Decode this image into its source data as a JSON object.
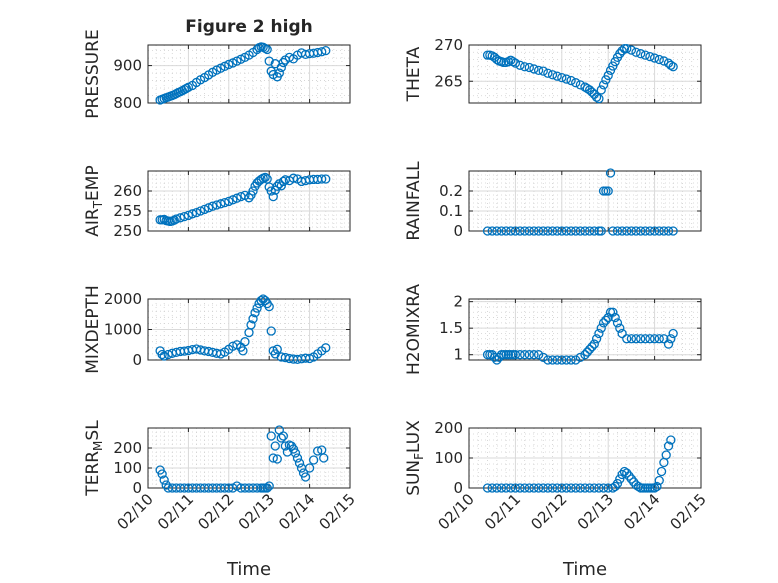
{
  "chart_data": [
    {
      "type": "scatter",
      "title": "Figure 2 high",
      "ylabel": "PRESSURE",
      "xlabel": "",
      "xlim": [
        0,
        5
      ],
      "ylim": [
        800,
        955
      ],
      "yticks": [
        800,
        900
      ],
      "yticklabels": [
        "800",
        "900"
      ],
      "grid": "on, with minor grid",
      "series": [
        {
          "x": [
            0.3,
            0.35,
            0.4,
            0.45,
            0.5,
            0.55,
            0.6,
            0.65,
            0.7,
            0.75,
            0.8,
            0.85,
            0.9,
            0.95,
            1.0,
            1.1,
            1.2,
            1.3,
            1.4,
            1.5,
            1.6,
            1.7,
            1.8,
            1.9,
            2.0,
            2.1,
            2.2,
            2.3,
            2.4,
            2.5,
            2.6,
            2.7,
            2.75,
            2.8,
            2.85,
            2.9,
            2.95,
            3.0,
            3.05,
            3.1,
            3.15,
            3.2,
            3.25,
            3.3,
            3.35,
            3.4,
            3.5,
            3.6,
            3.7,
            3.8,
            3.9,
            4.0,
            4.1,
            4.2,
            4.3,
            4.4
          ],
          "y": [
            808,
            810,
            812,
            814,
            816,
            818,
            820,
            822,
            825,
            828,
            830,
            833,
            836,
            839,
            842,
            847,
            855,
            862,
            868,
            875,
            882,
            888,
            893,
            898,
            903,
            907,
            912,
            917,
            922,
            928,
            935,
            943,
            948,
            950,
            949,
            946,
            943,
            912,
            885,
            876,
            905,
            870,
            880,
            895,
            908,
            915,
            922,
            918,
            928,
            934,
            930,
            932,
            933,
            935,
            937,
            940
          ]
        }
      ]
    },
    {
      "type": "scatter",
      "title": "",
      "ylabel": "THETA",
      "xlabel": "",
      "xlim": [
        0,
        5
      ],
      "ylim": [
        262,
        270
      ],
      "yticks": [
        265,
        270
      ],
      "yticklabels": [
        "265",
        "270"
      ],
      "grid": "on, with minor grid",
      "series": [
        {
          "x": [
            0.4,
            0.45,
            0.5,
            0.55,
            0.6,
            0.65,
            0.7,
            0.75,
            0.8,
            0.85,
            0.9,
            0.95,
            1.0,
            1.1,
            1.2,
            1.3,
            1.4,
            1.5,
            1.6,
            1.7,
            1.8,
            1.9,
            2.0,
            2.1,
            2.2,
            2.3,
            2.4,
            2.5,
            2.55,
            2.6,
            2.65,
            2.7,
            2.75,
            2.8,
            2.85,
            2.9,
            2.95,
            3.0,
            3.05,
            3.1,
            3.15,
            3.2,
            3.25,
            3.3,
            3.35,
            3.4,
            3.5,
            3.6,
            3.7,
            3.8,
            3.9,
            4.0,
            4.1,
            4.2,
            4.3,
            4.35,
            4.4
          ],
          "y": [
            268.6,
            268.6,
            268.5,
            268.3,
            268.0,
            267.8,
            267.7,
            267.6,
            267.6,
            267.7,
            267.9,
            267.7,
            267.5,
            267.2,
            267.0,
            266.9,
            266.7,
            266.5,
            266.4,
            266.1,
            265.9,
            265.7,
            265.5,
            265.3,
            265.1,
            264.8,
            264.5,
            264.2,
            264.0,
            263.8,
            263.5,
            263.2,
            262.8,
            262.6,
            263.8,
            264.5,
            265.2,
            265.8,
            266.5,
            267.1,
            267.7,
            268.3,
            268.8,
            269.2,
            269.5,
            269.5,
            269.3,
            269.0,
            268.8,
            268.6,
            268.4,
            268.2,
            268.0,
            267.8,
            267.5,
            267.2,
            267.0
          ]
        }
      ]
    },
    {
      "type": "scatter",
      "title": "",
      "ylabel": "AIR_TEMP",
      "xlabel": "",
      "xlim": [
        0,
        5
      ],
      "ylim": [
        250,
        265
      ],
      "yticks": [
        250,
        255,
        260
      ],
      "yticklabels": [
        "250",
        "255",
        "260"
      ],
      "grid": "on, with minor grid",
      "series": [
        {
          "x": [
            0.3,
            0.35,
            0.4,
            0.45,
            0.5,
            0.55,
            0.6,
            0.65,
            0.7,
            0.8,
            0.9,
            1.0,
            1.1,
            1.2,
            1.3,
            1.4,
            1.5,
            1.6,
            1.7,
            1.8,
            1.9,
            2.0,
            2.1,
            2.2,
            2.3,
            2.4,
            2.5,
            2.55,
            2.6,
            2.65,
            2.7,
            2.75,
            2.8,
            2.85,
            2.9,
            2.95,
            3.0,
            3.05,
            3.1,
            3.15,
            3.2,
            3.25,
            3.3,
            3.35,
            3.4,
            3.5,
            3.6,
            3.7,
            3.8,
            3.9,
            4.0,
            4.1,
            4.2,
            4.3,
            4.4
          ],
          "y": [
            252.8,
            252.8,
            252.9,
            252.6,
            252.5,
            252.4,
            252.5,
            252.7,
            253.0,
            253.3,
            253.6,
            253.9,
            254.3,
            254.6,
            255.0,
            255.4,
            255.8,
            256.2,
            256.5,
            256.8,
            257.1,
            257.4,
            257.8,
            258.2,
            258.6,
            258.9,
            258.3,
            259.0,
            260.0,
            261.2,
            262.0,
            262.5,
            262.9,
            263.2,
            263.4,
            263.0,
            261.0,
            260.0,
            258.6,
            260.2,
            261.2,
            261.8,
            261.3,
            262.4,
            262.8,
            262.6,
            263.2,
            263.0,
            262.4,
            262.6,
            262.8,
            262.9,
            262.9,
            263.0,
            263.0
          ]
        }
      ]
    },
    {
      "type": "scatter",
      "title": "",
      "ylabel": "RAINFALL",
      "xlabel": "",
      "xlim": [
        0,
        5
      ],
      "ylim": [
        0,
        0.3
      ],
      "yticks": [
        0,
        0.1,
        0.2
      ],
      "yticklabels": [
        "0",
        "0.1",
        "0.2"
      ],
      "grid": "on, with minor grid",
      "series": [
        {
          "x": [
            0.4,
            0.5,
            0.6,
            0.7,
            0.8,
            0.9,
            1.0,
            1.1,
            1.2,
            1.3,
            1.4,
            1.5,
            1.6,
            1.7,
            1.8,
            1.9,
            2.0,
            2.1,
            2.2,
            2.3,
            2.4,
            2.5,
            2.6,
            2.7,
            2.8,
            2.85,
            2.9,
            2.95,
            3.0,
            3.05,
            3.1,
            3.2,
            3.3,
            3.4,
            3.5,
            3.6,
            3.7,
            3.8,
            3.9,
            4.0,
            4.1,
            4.2,
            4.3,
            4.4
          ],
          "y": [
            0,
            0,
            0,
            0,
            0,
            0,
            0,
            0,
            0,
            0,
            0,
            0,
            0,
            0,
            0,
            0,
            0,
            0,
            0,
            0,
            0,
            0,
            0,
            0,
            0,
            0,
            0.2,
            0.2,
            0.2,
            0.29,
            0,
            0,
            0,
            0,
            0,
            0,
            0,
            0,
            0,
            0,
            0,
            0,
            0,
            0
          ]
        }
      ]
    },
    {
      "type": "scatter",
      "title": "",
      "ylabel": "MIXDEPTH",
      "xlabel": "",
      "xlim": [
        0,
        5
      ],
      "ylim": [
        0,
        2000
      ],
      "yticks": [
        0,
        1000,
        2000
      ],
      "yticklabels": [
        "0",
        "1000",
        "2000"
      ],
      "grid": "on, with minor grid",
      "series": [
        {
          "x": [
            0.3,
            0.35,
            0.4,
            0.5,
            0.6,
            0.7,
            0.8,
            0.9,
            1.0,
            1.1,
            1.2,
            1.3,
            1.4,
            1.5,
            1.6,
            1.7,
            1.8,
            1.9,
            2.0,
            2.1,
            2.2,
            2.3,
            2.35,
            2.4,
            2.5,
            2.55,
            2.6,
            2.65,
            2.7,
            2.75,
            2.8,
            2.85,
            2.9,
            2.95,
            3.0,
            3.05,
            3.1,
            3.15,
            3.2,
            3.3,
            3.4,
            3.5,
            3.6,
            3.7,
            3.8,
            3.9,
            4.0,
            4.1,
            4.2,
            4.3,
            4.4
          ],
          "y": [
            300,
            180,
            130,
            180,
            220,
            250,
            280,
            290,
            310,
            340,
            360,
            330,
            300,
            280,
            250,
            220,
            200,
            260,
            350,
            450,
            500,
            420,
            300,
            600,
            900,
            1150,
            1350,
            1550,
            1700,
            1850,
            1950,
            2000,
            1950,
            1850,
            1750,
            950,
            300,
            200,
            350,
            100,
            80,
            50,
            30,
            20,
            40,
            60,
            50,
            100,
            200,
            300,
            400
          ]
        }
      ]
    },
    {
      "type": "scatter",
      "title": "",
      "ylabel": "H2OMIXRA",
      "xlabel": "",
      "xlim": [
        0,
        5
      ],
      "ylim": [
        0.9,
        2.05
      ],
      "yticks": [
        1,
        1.5,
        2
      ],
      "yticklabels": [
        "1",
        "1.5",
        "2"
      ],
      "grid": "on, with minor grid",
      "series": [
        {
          "x": [
            0.4,
            0.45,
            0.5,
            0.55,
            0.6,
            0.65,
            0.7,
            0.75,
            0.8,
            0.85,
            0.9,
            0.95,
            1.0,
            1.1,
            1.2,
            1.3,
            1.4,
            1.5,
            1.6,
            1.7,
            1.8,
            1.9,
            2.0,
            2.1,
            2.2,
            2.3,
            2.4,
            2.5,
            2.55,
            2.6,
            2.65,
            2.7,
            2.75,
            2.8,
            2.85,
            2.9,
            2.95,
            3.0,
            3.05,
            3.1,
            3.15,
            3.2,
            3.25,
            3.3,
            3.4,
            3.5,
            3.6,
            3.7,
            3.8,
            3.9,
            4.0,
            4.1,
            4.2,
            4.3,
            4.35,
            4.4
          ],
          "y": [
            1.0,
            1.0,
            1.0,
            0.95,
            0.9,
            0.95,
            1.0,
            1.0,
            1.0,
            1.0,
            1.0,
            1.0,
            1.0,
            1.0,
            1.0,
            1.0,
            1.0,
            1.0,
            0.95,
            0.9,
            0.9,
            0.9,
            0.9,
            0.9,
            0.9,
            0.9,
            0.95,
            1.0,
            1.05,
            1.1,
            1.15,
            1.2,
            1.3,
            1.4,
            1.5,
            1.6,
            1.65,
            1.7,
            1.8,
            1.8,
            1.7,
            1.6,
            1.5,
            1.4,
            1.3,
            1.3,
            1.3,
            1.3,
            1.3,
            1.3,
            1.3,
            1.3,
            1.3,
            1.2,
            1.3,
            1.4
          ]
        }
      ]
    },
    {
      "type": "scatter",
      "title": "",
      "ylabel": "TERR_MSL",
      "xlabel": "Time",
      "xlim": [
        0,
        5
      ],
      "ylim": [
        0,
        300
      ],
      "yticks": [
        0,
        100,
        200
      ],
      "yticklabels": [
        "0",
        "100",
        "200"
      ],
      "xticklabels": [
        "02/10",
        "02/11",
        "02/12",
        "02/13",
        "02/14",
        "02/15"
      ],
      "grid": "on, with minor grid",
      "series": [
        {
          "x": [
            0.3,
            0.35,
            0.4,
            0.45,
            0.5,
            0.6,
            0.7,
            0.8,
            0.9,
            1.0,
            1.1,
            1.2,
            1.3,
            1.4,
            1.5,
            1.6,
            1.7,
            1.8,
            1.9,
            2.0,
            2.1,
            2.2,
            2.3,
            2.4,
            2.5,
            2.6,
            2.7,
            2.8,
            2.85,
            2.9,
            2.95,
            3.0,
            3.05,
            3.1,
            3.15,
            3.2,
            3.25,
            3.3,
            3.35,
            3.4,
            3.45,
            3.5,
            3.55,
            3.6,
            3.65,
            3.7,
            3.75,
            3.8,
            3.85,
            3.9,
            4.0,
            4.1,
            4.2,
            4.3,
            4.35
          ],
          "y": [
            90,
            70,
            40,
            15,
            0,
            0,
            0,
            0,
            0,
            0,
            0,
            0,
            0,
            0,
            0,
            0,
            0,
            0,
            0,
            0,
            0,
            10,
            0,
            0,
            0,
            0,
            0,
            0,
            0,
            0,
            0,
            10,
            260,
            150,
            210,
            145,
            290,
            250,
            260,
            210,
            180,
            215,
            210,
            195,
            175,
            150,
            125,
            100,
            75,
            55,
            100,
            140,
            185,
            190,
            150
          ]
        }
      ]
    },
    {
      "type": "scatter",
      "title": "",
      "ylabel": "SUN_FLUX",
      "xlabel": "Time",
      "xlim": [
        0,
        5
      ],
      "ylim": [
        0,
        200
      ],
      "yticks": [
        0,
        100,
        200
      ],
      "yticklabels": [
        "0",
        "100",
        "200"
      ],
      "xticklabels": [
        "02/10",
        "02/11",
        "02/12",
        "02/13",
        "02/14",
        "02/15"
      ],
      "grid": "on, with minor grid",
      "series": [
        {
          "x": [
            0.4,
            0.5,
            0.6,
            0.7,
            0.8,
            0.9,
            1.0,
            1.1,
            1.2,
            1.3,
            1.4,
            1.5,
            1.6,
            1.7,
            1.8,
            1.9,
            2.0,
            2.1,
            2.2,
            2.3,
            2.4,
            2.5,
            2.6,
            2.7,
            2.8,
            2.9,
            3.0,
            3.1,
            3.15,
            3.2,
            3.25,
            3.3,
            3.35,
            3.4,
            3.45,
            3.5,
            3.55,
            3.6,
            3.65,
            3.7,
            3.75,
            3.8,
            3.85,
            3.9,
            3.95,
            4.0,
            4.05,
            4.1,
            4.15,
            4.2,
            4.25,
            4.3,
            4.35
          ],
          "y": [
            0,
            0,
            0,
            0,
            0,
            0,
            0,
            0,
            0,
            0,
            0,
            0,
            0,
            0,
            0,
            0,
            0,
            0,
            0,
            0,
            0,
            0,
            0,
            0,
            0,
            0,
            0,
            0,
            5,
            15,
            30,
            45,
            55,
            50,
            40,
            30,
            20,
            10,
            5,
            0,
            0,
            0,
            0,
            0,
            0,
            0,
            5,
            25,
            55,
            85,
            110,
            140,
            160
          ]
        }
      ]
    }
  ]
}
